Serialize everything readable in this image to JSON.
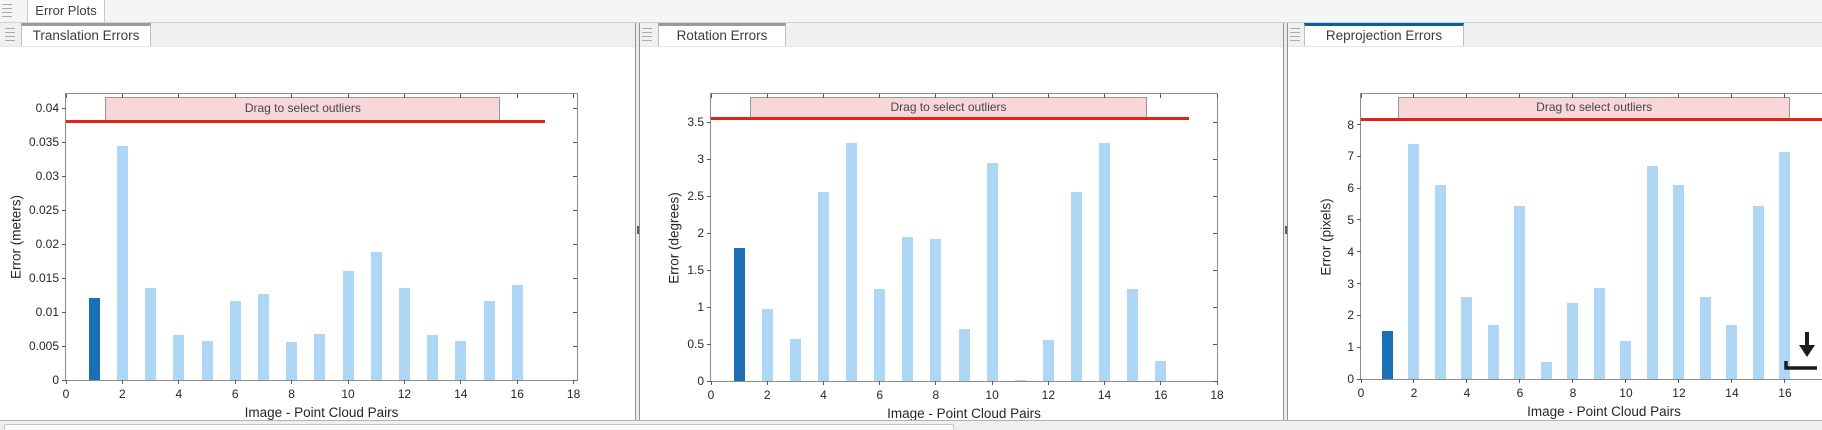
{
  "app": {
    "document_tab": "Error Plots"
  },
  "colors": {
    "bar_light": "#aed7f6",
    "bar_dark": "#1a6fb5",
    "threshold_red": "#e02417",
    "banner_fill": "#f7d7d7",
    "tab_accent_active": "#0b5d9c",
    "tab_accent_inactive": "#9b9b9b"
  },
  "panels": [
    {
      "tab_label": "Translation Errors",
      "active": false
    },
    {
      "tab_label": "Rotation Errors",
      "active": false
    },
    {
      "tab_label": "Reprojection Errors",
      "active": true
    }
  ],
  "chart_data": [
    {
      "type": "bar",
      "title": "Translation Errors",
      "xlabel": "Image - Point Cloud Pairs",
      "ylabel": "Error (meters)",
      "banner_label": "Drag to select outliers",
      "x": [
        1,
        2,
        3,
        4,
        5,
        6,
        7,
        8,
        9,
        10,
        11,
        12,
        13,
        14,
        15,
        16
      ],
      "values": [
        0.012,
        0.0345,
        0.0135,
        0.0066,
        0.0058,
        0.0116,
        0.0126,
        0.0056,
        0.0067,
        0.016,
        0.0188,
        0.0135,
        0.0066,
        0.0058,
        0.0116,
        0.014
      ],
      "highlight_index": 0,
      "threshold": 0.038,
      "ylim": [
        0,
        0.0421
      ],
      "xlim": [
        0,
        18.12
      ],
      "ytick_values": [
        0,
        0.005,
        0.01,
        0.015,
        0.02,
        0.025,
        0.03,
        0.035,
        0.04
      ],
      "ytick_labels": [
        "0",
        "0.005",
        "0.01",
        "0.015",
        "0.02",
        "0.025",
        "0.03",
        "0.035",
        "0.04"
      ],
      "xtick_values": [
        0,
        2,
        4,
        6,
        8,
        10,
        12,
        14,
        16,
        18
      ],
      "xtick_labels": [
        "0",
        "2",
        "4",
        "6",
        "8",
        "10",
        "12",
        "14",
        "16",
        "18"
      ],
      "banner_span": [
        1.4,
        15.4
      ],
      "threshold_span": [
        0,
        17
      ],
      "grid": false,
      "legend": null
    },
    {
      "type": "bar",
      "title": "Rotation Errors",
      "xlabel": "Image - Point Cloud Pairs",
      "ylabel": "Error (degrees)",
      "banner_label": "Drag to select outliers",
      "x": [
        1,
        2,
        3,
        4,
        5,
        6,
        7,
        8,
        9,
        10,
        11,
        12,
        13,
        14,
        15,
        16
      ],
      "values": [
        1.8,
        0.97,
        0.57,
        2.55,
        3.22,
        1.25,
        1.95,
        1.92,
        0.7,
        2.95,
        0.02,
        0.56,
        2.55,
        3.22,
        1.25,
        0.27
      ],
      "highlight_index": 0,
      "threshold": 3.55,
      "ylim": [
        0,
        3.88
      ],
      "xlim": [
        0,
        18
      ],
      "ytick_values": [
        0,
        0.5,
        1,
        1.5,
        2,
        2.5,
        3,
        3.5
      ],
      "ytick_labels": [
        "0",
        "0.5",
        "1",
        "1.5",
        "2",
        "2.5",
        "3",
        "3.5"
      ],
      "xtick_values": [
        0,
        2,
        4,
        6,
        8,
        10,
        12,
        14,
        16,
        18
      ],
      "xtick_labels": [
        "0",
        "2",
        "4",
        "6",
        "8",
        "10",
        "12",
        "14",
        "16",
        "18"
      ],
      "banner_span": [
        1.4,
        15.5
      ],
      "threshold_span": [
        0,
        17
      ],
      "grid": false,
      "legend": null
    },
    {
      "type": "bar",
      "title": "Reprojection Errors",
      "xlabel": "Image - Point Cloud Pairs",
      "ylabel": "Error (pixels)",
      "banner_label": "Drag to select outliers",
      "x": [
        1,
        2,
        3,
        4,
        5,
        6,
        7,
        8,
        9,
        10,
        11,
        12,
        13,
        14,
        15,
        16
      ],
      "values": [
        1.5,
        7.4,
        6.1,
        2.58,
        1.7,
        5.45,
        0.55,
        2.38,
        2.87,
        1.2,
        6.7,
        6.1,
        2.58,
        1.7,
        5.45,
        7.15
      ],
      "highlight_index": 0,
      "threshold": 8.15,
      "ylim": [
        0,
        8.96
      ],
      "xlim": [
        0,
        18.34
      ],
      "ytick_values": [
        0,
        1,
        2,
        3,
        4,
        5,
        6,
        7,
        8
      ],
      "ytick_labels": [
        "0",
        "1",
        "2",
        "3",
        "4",
        "5",
        "6",
        "7",
        "8"
      ],
      "xtick_values": [
        0,
        2,
        4,
        6,
        8,
        10,
        12,
        14,
        16
      ],
      "xtick_labels": [
        "0",
        "2",
        "4",
        "6",
        "8",
        "10",
        "12",
        "14",
        "16"
      ],
      "banner_span": [
        1.4,
        16.2
      ],
      "threshold_span": [
        0,
        17.5
      ],
      "grid": false,
      "legend": null
    }
  ]
}
